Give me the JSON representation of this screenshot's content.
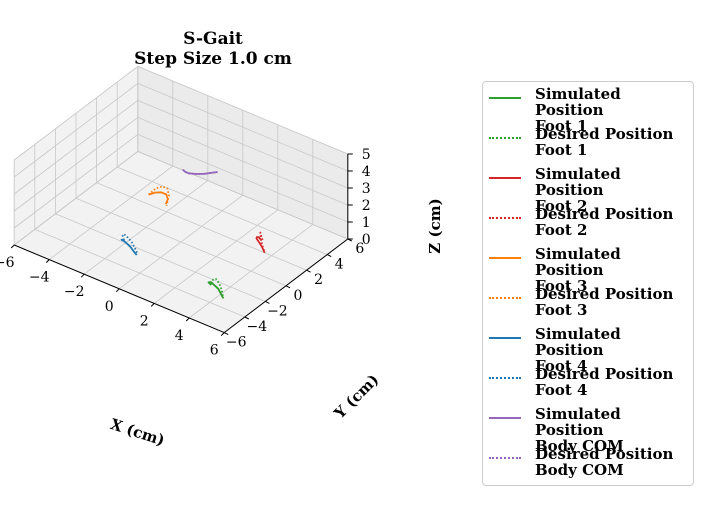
{
  "chart_data": {
    "type": "line3d",
    "title": [
      "S-Gait",
      "Step Size 1.0 cm"
    ],
    "xlabel": "X (cm)",
    "ylabel": "Y (cm)",
    "zlabel": "Z (cm)",
    "xlim": [
      -6,
      6
    ],
    "ylim": [
      -6,
      6
    ],
    "zlim": [
      0,
      5
    ],
    "xticks": [
      "−6",
      "−4",
      "−2",
      "0",
      "2",
      "4",
      "6"
    ],
    "yticks": [
      "−6",
      "−4",
      "−2",
      "0",
      "2",
      "4",
      "6"
    ],
    "zticks": [
      "0",
      "1",
      "2",
      "3",
      "4",
      "5"
    ],
    "grid": true,
    "legend_position": "right",
    "series": [
      {
        "name": "Simulated Position Foot 1",
        "line1": "Simulated Position",
        "line2": "Foot 1",
        "color": "#2ca02c",
        "style": "solid",
        "x": [
          3.2,
          3.1,
          3.3,
          3.6,
          3.9,
          4.1,
          4.3
        ],
        "y": [
          -2.5,
          -2.6,
          -2.7,
          -2.9,
          -3.0,
          -3.1,
          -3.2
        ],
        "z": [
          0.0,
          0.15,
          0.3,
          0.35,
          0.3,
          0.15,
          0.0
        ]
      },
      {
        "name": "Desired Position Foot 1",
        "line1": "Desired Position",
        "line2": "Foot 1",
        "color": "#2ca02c",
        "style": "dotted",
        "x": [
          3.2,
          3.3,
          3.6,
          3.9,
          4.1,
          4.3
        ],
        "y": [
          -2.4,
          -2.5,
          -2.7,
          -2.9,
          -3.0,
          -3.2
        ],
        "z": [
          0.0,
          0.35,
          0.6,
          0.55,
          0.3,
          0.0
        ]
      },
      {
        "name": "Simulated Position Foot 2",
        "line1": "Simulated Position",
        "line2": "Foot 2",
        "color": "#d62728",
        "style": "solid",
        "x": [
          2.9,
          2.8,
          2.8,
          2.9,
          3.2,
          3.4,
          3.6
        ],
        "y": [
          2.9,
          2.8,
          2.6,
          2.4,
          2.2,
          2.1,
          2.0
        ],
        "z": [
          0.0,
          0.2,
          0.3,
          0.35,
          0.3,
          0.2,
          0.0
        ]
      },
      {
        "name": "Desired Position Foot 2",
        "line1": "Desired Position",
        "line2": "Foot 2",
        "color": "#d62728",
        "style": "dotted",
        "x": [
          2.9,
          2.9,
          3.0,
          3.2,
          3.4,
          3.6
        ],
        "y": [
          3.0,
          2.8,
          2.6,
          2.3,
          2.1,
          2.0
        ],
        "z": [
          0.0,
          0.45,
          0.65,
          0.6,
          0.35,
          0.0
        ]
      },
      {
        "name": "Simulated Position Foot 3",
        "line1": "Simulated Position",
        "line2": "Foot 3",
        "color": "#ff7f0e",
        "style": "solid",
        "x": [
          -3.5,
          -3.2,
          -2.9,
          -2.6,
          -2.4,
          -2.4
        ],
        "y": [
          2.8,
          2.9,
          3.0,
          3.0,
          2.8,
          2.6
        ],
        "z": [
          0.0,
          0.2,
          0.3,
          0.3,
          0.2,
          0.0
        ]
      },
      {
        "name": "Desired Position Foot 3",
        "line1": "Desired Position",
        "line2": "Foot 3",
        "color": "#ff7f0e",
        "style": "dotted",
        "x": [
          -3.5,
          -3.2,
          -2.9,
          -2.6,
          -2.4,
          -2.3
        ],
        "y": [
          2.8,
          3.0,
          3.1,
          3.1,
          2.9,
          2.5
        ],
        "z": [
          0.0,
          0.4,
          0.6,
          0.6,
          0.35,
          0.0
        ]
      },
      {
        "name": "Simulated Position Foot 4",
        "line1": "Simulated Position",
        "line2": "Foot 4",
        "color": "#1f77b4",
        "style": "solid",
        "x": [
          -2.2,
          -2.1,
          -1.9,
          -1.6,
          -1.3,
          -1.1,
          -1.0
        ],
        "y": [
          -1.9,
          -2.2,
          -2.4,
          -2.6,
          -2.7,
          -2.7,
          -2.6
        ],
        "z": [
          0.0,
          0.25,
          0.4,
          0.45,
          0.4,
          0.2,
          0.0
        ]
      },
      {
        "name": "Desired Position Foot 4",
        "line1": "Desired Position",
        "line2": "Foot 4",
        "color": "#1f77b4",
        "style": "dotted",
        "x": [
          -2.2,
          -2.1,
          -1.9,
          -1.6,
          -1.3,
          -1.1,
          -1.0
        ],
        "y": [
          -1.8,
          -2.1,
          -2.3,
          -2.5,
          -2.6,
          -2.6,
          -2.5
        ],
        "z": [
          0.0,
          0.45,
          0.7,
          0.75,
          0.65,
          0.35,
          0.0
        ]
      },
      {
        "name": "Simulated Position Body COM",
        "line1": "Simulated Position",
        "line2": "Body COM",
        "color": "#9467bd",
        "style": "solid",
        "x": [
          0.1,
          0.3,
          0.5,
          0.8,
          1.1,
          1.3,
          1.5
        ],
        "y": [
          0.0,
          -0.1,
          -0.1,
          0.1,
          0.4,
          0.7,
          1.0
        ],
        "z": [
          4.3,
          4.3,
          4.3,
          4.3,
          4.3,
          4.3,
          4.3
        ]
      },
      {
        "name": "Desired Position Body COM",
        "line1": "Desired Position",
        "line2": "Body COM",
        "color": "#9467bd",
        "style": "dotted",
        "x": [
          0.1,
          0.3,
          0.5,
          0.8,
          1.1,
          1.3,
          1.5
        ],
        "y": [
          0.0,
          -0.1,
          -0.1,
          0.1,
          0.4,
          0.7,
          1.0
        ],
        "z": [
          4.3,
          4.3,
          4.3,
          4.3,
          4.3,
          4.3,
          4.3
        ]
      }
    ]
  }
}
